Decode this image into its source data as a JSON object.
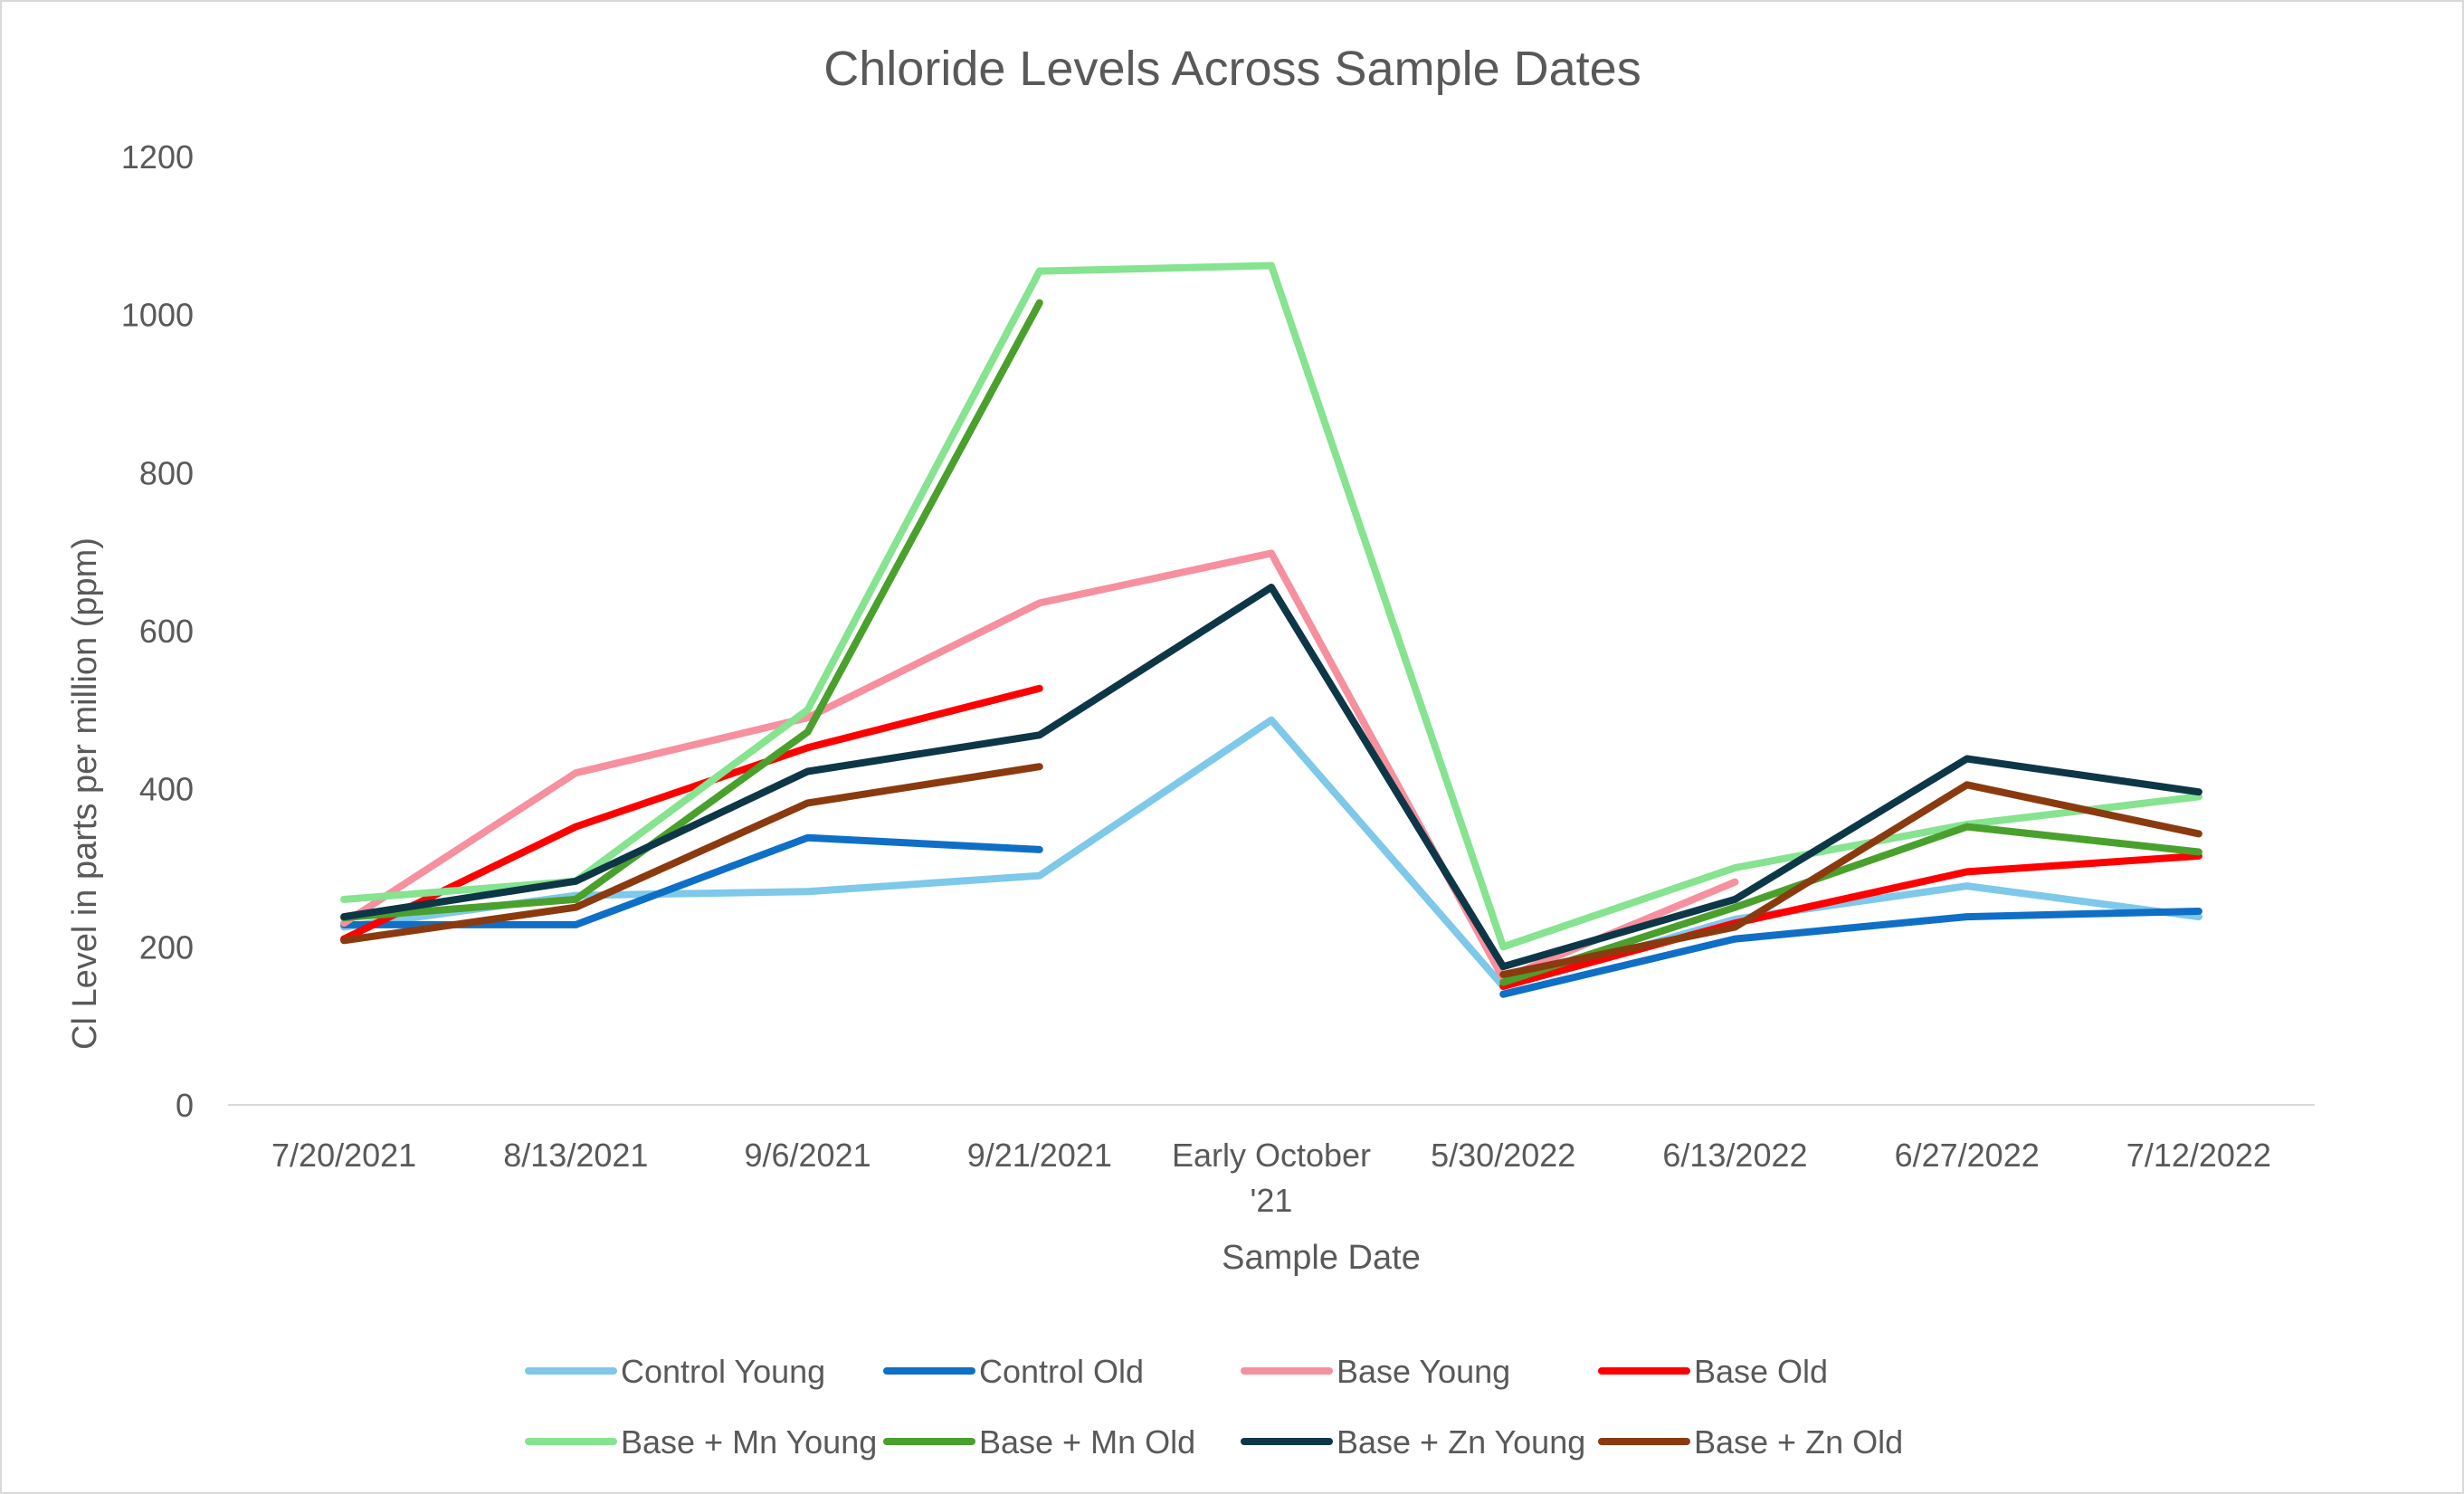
{
  "chart_data": {
    "type": "line",
    "title": "Chloride Levels Across Sample Dates",
    "xlabel": "Sample Date",
    "ylabel": "Cl Level in parts per million (ppm)",
    "ylim": [
      0,
      1200
    ],
    "yticks": [
      "0",
      "200",
      "400",
      "600",
      "800",
      "1000",
      "1200"
    ],
    "categories": [
      "7/20/2021",
      "8/13/2021",
      "9/6/2021",
      "9/21/2021",
      "Early October '21",
      "5/30/2022",
      "6/13/2022",
      "6/27/2022",
      "7/12/2022"
    ],
    "category_lines": [
      [
        "7/20/2021"
      ],
      [
        "8/13/2021"
      ],
      [
        "9/6/2021"
      ],
      [
        "9/21/2021"
      ],
      [
        "Early October",
        "'21"
      ],
      [
        "5/30/2022"
      ],
      [
        "6/13/2022"
      ],
      [
        "6/27/2022"
      ],
      [
        "7/12/2022"
      ]
    ],
    "grid": false,
    "legend_position": "bottom",
    "series": [
      {
        "name": "Control Young",
        "color": "#7ec8ea",
        "values": [
          225,
          265,
          270,
          290,
          487,
          150,
          235,
          277,
          238
        ]
      },
      {
        "name": "Control Old",
        "color": "#0f6fc6",
        "values": [
          228,
          228,
          338,
          323,
          null,
          140,
          210,
          238,
          245
        ]
      },
      {
        "name": "Base Young",
        "color": "#f7909e",
        "values": [
          230,
          420,
          490,
          635,
          698,
          160,
          282,
          null,
          null
        ]
      },
      {
        "name": "Base Old",
        "color": "#ff0000",
        "values": [
          210,
          352,
          452,
          527,
          null,
          150,
          230,
          295,
          315
        ]
      },
      {
        "name": "Base + Mn Young",
        "color": "#86e38f",
        "values": [
          260,
          283,
          500,
          1055,
          1062,
          200,
          300,
          355,
          390
        ]
      },
      {
        "name": "Base + Mn Old",
        "color": "#4aa02c",
        "values": [
          237,
          260,
          472,
          1015,
          null,
          155,
          250,
          352,
          320
        ]
      },
      {
        "name": "Base + Zn Young",
        "color": "#0d3747",
        "values": [
          238,
          283,
          422,
          468,
          655,
          175,
          260,
          438,
          396
        ]
      },
      {
        "name": "Base + Zn Old",
        "color": "#8b3a10",
        "values": [
          208,
          250,
          382,
          428,
          null,
          165,
          225,
          405,
          343
        ]
      }
    ]
  }
}
